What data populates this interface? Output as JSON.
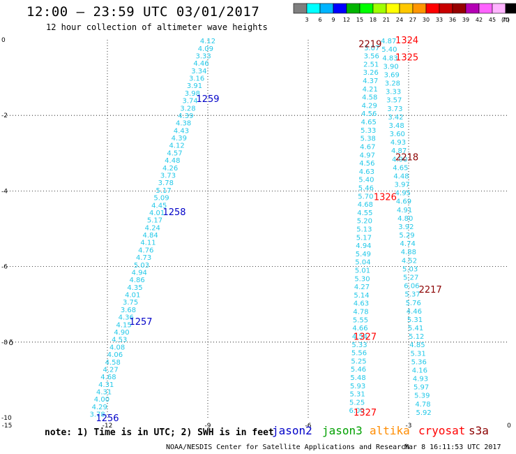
{
  "header": {
    "title": "12:00 — 23:59 UTC 03/01/2017",
    "subtitle": "12 hour collection of altimeter wave heights"
  },
  "legend": {
    "colors": [
      "#7f7f7f",
      "#00ffff",
      "#00b4ff",
      "#0000ff",
      "#00b400",
      "#00ff00",
      "#a0ff00",
      "#ffff00",
      "#ffc800",
      "#ff9600",
      "#ff0000",
      "#c80000",
      "#960000",
      "#b400b4",
      "#ff64ff",
      "#ffb4ff",
      "#000000"
    ],
    "labels": [
      "3",
      "6",
      "9",
      "12",
      "15",
      "18",
      "21",
      "24",
      "27",
      "30",
      "33",
      "36",
      "39",
      "42",
      "45",
      "70"
    ],
    "unit": "(ft)"
  },
  "chart_data": {
    "type": "scatter",
    "title": "12 hour collection of altimeter wave heights",
    "xlim": [
      -15,
      0
    ],
    "ylim": [
      -10,
      0
    ],
    "x_ticks": [
      "-15",
      "-12",
      "-9",
      "-6",
      "-3",
      "0"
    ],
    "y_ticks": [
      "0",
      "-2",
      "-4",
      "-6",
      "-8",
      "-10"
    ],
    "swh_color": "#22c8e8",
    "tracks": [
      {
        "satellite": "jason2",
        "start": [
          -9.0,
          -0.02
        ],
        "end": [
          -12.3,
          -9.9
        ],
        "values": [
          "4.12",
          "4.09",
          "3.33",
          "4.46",
          "3.34",
          "3.16",
          "3.91",
          "3.98",
          "3.74",
          "3.28",
          "4.39",
          "4.38",
          "4.43",
          "4.39",
          "4.12",
          "4.57",
          "4.48",
          "4.26",
          "3.73",
          "3.78",
          "5.17",
          "5.09",
          "4.45",
          "4.01",
          "5.17",
          "4.24",
          "4.84",
          "4.11",
          "4.76",
          "4.73",
          "5.03",
          "4.94",
          "4.86",
          "4.35",
          "4.01",
          "3.75",
          "3.68",
          "4.36",
          "4.15",
          "4.90",
          "4.53",
          "4.08",
          "4.06",
          "4.58",
          "4.27",
          "4.68",
          "4.31",
          "4.31",
          "4.00",
          "4.29",
          "3.78"
        ]
      },
      {
        "satellite": "cryosat",
        "start": [
          -4.1,
          -0.2
        ],
        "end": [
          -4.55,
          -9.8
        ],
        "values": [
          "3.07",
          "3.56",
          "2.51",
          "3.26",
          "4.37",
          "4.21",
          "4.58",
          "4.29",
          "4.56",
          "4.65",
          "5.33",
          "5.38",
          "4.67",
          "4.97",
          "4.56",
          "4.63",
          "5.40",
          "5.46",
          "5.70",
          "4.68",
          "4.55",
          "5.20",
          "5.13",
          "5.17",
          "4.94",
          "5.49",
          "5.04",
          "5.01",
          "5.30",
          "4.27",
          "5.14",
          "4.63",
          "4.78",
          "5.55",
          "4.66",
          "4.54",
          "5.33",
          "5.56",
          "5.25",
          "5.46",
          "5.48",
          "5.93",
          "5.31",
          "5.25",
          "6.00"
        ]
      },
      {
        "satellite": "cryosat",
        "start": [
          -3.6,
          -0.02
        ],
        "end": [
          -2.55,
          -9.85
        ],
        "values": [
          "4.87",
          "5.40",
          "4.83",
          "3.90",
          "3.69",
          "3.28",
          "3.33",
          "3.57",
          "3.73",
          "3.42",
          "3.48",
          "3.60",
          "4.93",
          "4.87",
          "4.90",
          "4.65",
          "4.48",
          "3.97",
          "4.95",
          "4.69",
          "4.91",
          "4.80",
          "3.92",
          "5.29",
          "4.74",
          "4.88",
          "4.52",
          "5.03",
          "5.27",
          "6.06",
          "5.37",
          "5.76",
          "4.46",
          "5.31",
          "5.41",
          "5.12",
          "4.85",
          "5.31",
          "5.36",
          "4.16",
          "4.93",
          "5.97",
          "5.39",
          "4.78",
          "5.92"
        ]
      }
    ],
    "pass_labels": [
      {
        "text": "1259",
        "x": -9.0,
        "y": -1.55,
        "satellite": "jason2"
      },
      {
        "text": "1258",
        "x": -10.0,
        "y": -4.55,
        "satellite": "jason2"
      },
      {
        "text": "1257",
        "x": -11.0,
        "y": -7.45,
        "satellite": "jason2"
      },
      {
        "text": "1256",
        "x": -12.0,
        "y": -10.0,
        "satellite": "jason2"
      },
      {
        "text": "1324",
        "x": -3.05,
        "y": 0.0,
        "satellite": "cryosat"
      },
      {
        "text": "2219",
        "x": -4.15,
        "y": -0.1,
        "satellite": "s3a"
      },
      {
        "text": "1325",
        "x": -3.05,
        "y": -0.45,
        "satellite": "cryosat"
      },
      {
        "text": "2218",
        "x": -3.05,
        "y": -3.1,
        "satellite": "s3a"
      },
      {
        "text": "1326",
        "x": -3.7,
        "y": -4.15,
        "satellite": "cryosat"
      },
      {
        "text": "2217",
        "x": -2.35,
        "y": -6.6,
        "satellite": "s3a"
      },
      {
        "text": "1327",
        "x": -4.3,
        "y": -7.85,
        "satellite": "cryosat"
      },
      {
        "text": "1327",
        "x": -4.3,
        "y": -9.85,
        "satellite": "cryosat"
      }
    ],
    "satellite_colors": {
      "jason2": "#0000c8",
      "jason3": "#00a000",
      "altika": "#ff8c00",
      "cryosat": "#ff0000",
      "s3a": "#8b0000"
    },
    "marker": {
      "glyph": "ð",
      "x": -14.95,
      "y": -8.0
    }
  },
  "footer": {
    "note": "note:  1) Time is in UTC;  2) SWH is in feet",
    "satellites": [
      "jason2",
      "jason3",
      "altika",
      "cryosat",
      "s3a"
    ],
    "credit": "NOAA/NESDIS Center for Satellite Applications and Research",
    "timestamp": "Mar  8 16:11:53 UTC 2017"
  }
}
